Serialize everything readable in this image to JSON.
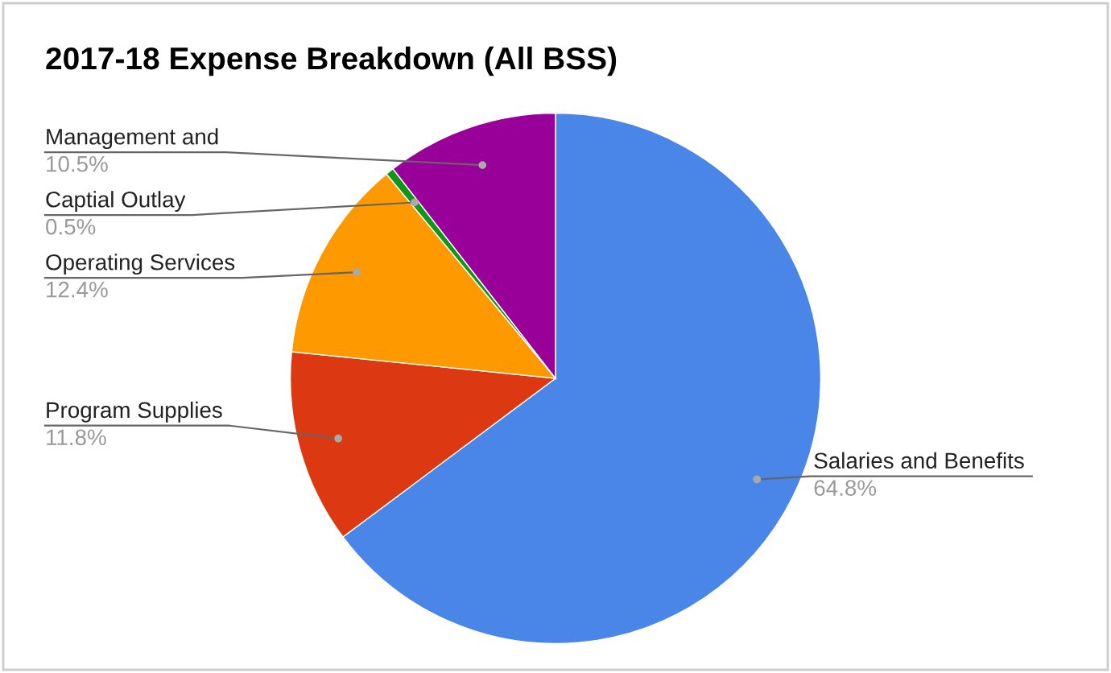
{
  "chart_data": {
    "type": "pie",
    "title": "2017-18 Expense Breakdown (All BSS)",
    "categories": [
      "Salaries and Benefits",
      "Program Supplies",
      "Operating Services",
      "Captial Outlay",
      "Management and"
    ],
    "values": [
      64.8,
      11.8,
      12.4,
      0.5,
      10.5
    ],
    "value_labels": [
      "64.8%",
      "11.8%",
      "12.4%",
      "0.5%",
      "10.5%"
    ],
    "colors": [
      "#4a86e8",
      "#dc3912",
      "#ff9900",
      "#109618",
      "#990099"
    ],
    "legend": false
  }
}
